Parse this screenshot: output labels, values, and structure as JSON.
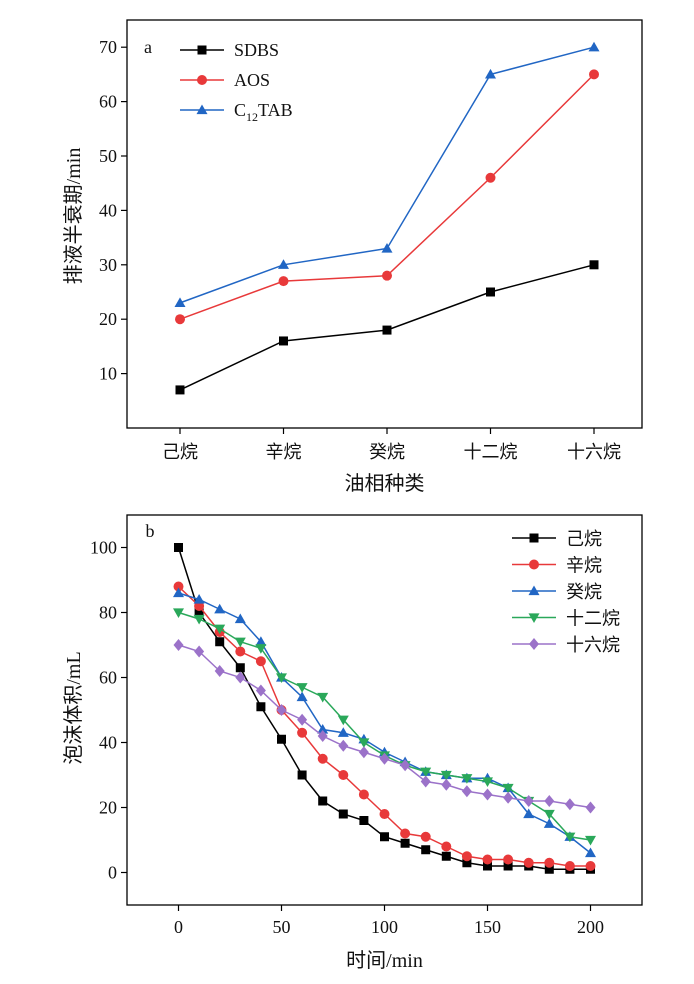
{
  "chart_data": [
    {
      "panel_label": "a",
      "type": "line",
      "xlabel": "油相种类",
      "ylabel": "排液半衰期/min",
      "categories": [
        "己烷",
        "辛烷",
        "癸烷",
        "十二烷",
        "十六烷"
      ],
      "ylim": [
        0,
        75
      ],
      "yticks": [
        10,
        20,
        30,
        40,
        50,
        60,
        70
      ],
      "grid": false,
      "legend_position": "top-left",
      "series": [
        {
          "name": "SDBS",
          "color": "#000000",
          "marker": "square",
          "values": [
            7,
            16,
            18,
            25,
            30
          ]
        },
        {
          "name": "AOS",
          "color": "#e8393a",
          "marker": "circle",
          "values": [
            20,
            27,
            28,
            46,
            65
          ]
        },
        {
          "name": "C12TAB",
          "name_main": "C",
          "name_sub": "12",
          "name_tail": "TAB",
          "color": "#2166c4",
          "marker": "triangle-up",
          "values": [
            23,
            30,
            33,
            65,
            70
          ]
        }
      ]
    },
    {
      "panel_label": "b",
      "type": "line",
      "xlabel": "时间/min",
      "ylabel": "泡沫体积/mL",
      "xlim": [
        -25,
        225
      ],
      "ylim": [
        -10,
        110
      ],
      "xticks": [
        0,
        50,
        100,
        150,
        200
      ],
      "yticks": [
        0,
        20,
        40,
        60,
        80,
        100
      ],
      "grid": false,
      "legend_position": "top-right",
      "x": [
        0,
        10,
        20,
        30,
        40,
        50,
        60,
        70,
        80,
        90,
        100,
        110,
        120,
        130,
        140,
        150,
        160,
        170,
        180,
        190,
        200
      ],
      "series": [
        {
          "name": "己烷",
          "color": "#000000",
          "marker": "square",
          "values": [
            100,
            80,
            71,
            63,
            51,
            41,
            30,
            22,
            18,
            16,
            11,
            9,
            7,
            5,
            3,
            2,
            2,
            2,
            1,
            1,
            1
          ]
        },
        {
          "name": "辛烷",
          "color": "#e8393a",
          "marker": "circle",
          "values": [
            88,
            82,
            74,
            68,
            65,
            50,
            43,
            35,
            30,
            24,
            18,
            12,
            11,
            8,
            5,
            4,
            4,
            3,
            3,
            2,
            2
          ]
        },
        {
          "name": "癸烷",
          "color": "#2166c4",
          "marker": "triangle-up",
          "values": [
            86,
            84,
            81,
            78,
            71,
            60,
            54,
            44,
            43,
            41,
            37,
            34,
            31,
            30,
            29,
            29,
            26,
            18,
            15,
            11,
            6
          ]
        },
        {
          "name": "十二烷",
          "color": "#2aa85a",
          "marker": "triangle-down",
          "values": [
            80,
            78,
            75,
            71,
            69,
            60,
            57,
            54,
            47,
            40,
            36,
            33,
            31,
            30,
            29,
            28,
            26,
            22,
            18,
            11,
            10
          ]
        },
        {
          "name": "十六烷",
          "color": "#9b72c9",
          "marker": "diamond",
          "values": [
            70,
            68,
            62,
            60,
            56,
            50,
            47,
            42,
            39,
            37,
            35,
            33,
            28,
            27,
            25,
            24,
            23,
            22,
            22,
            21,
            20
          ]
        }
      ]
    }
  ]
}
